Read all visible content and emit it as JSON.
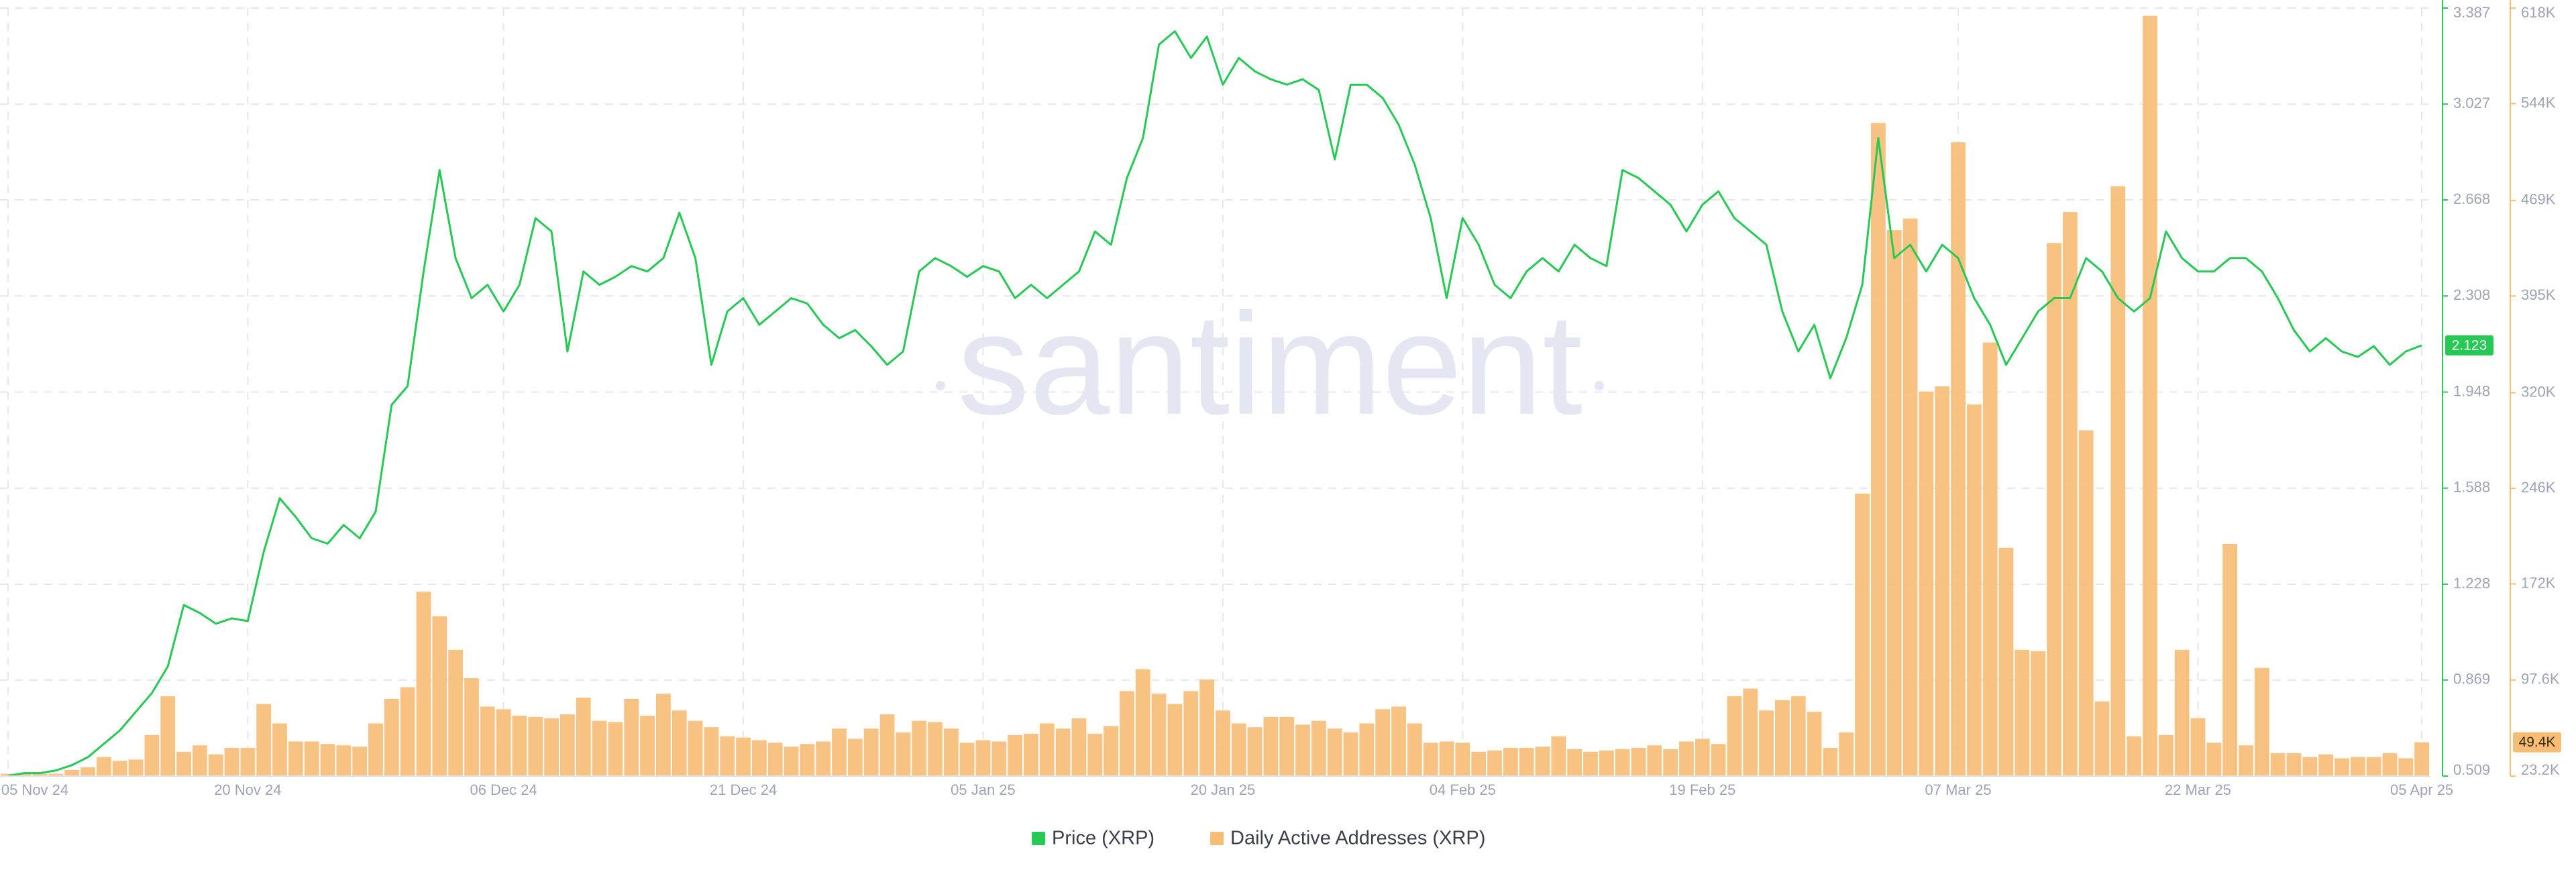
{
  "chart_data": {
    "type": "combo",
    "watermark": "santiment",
    "grid": true,
    "x": [
      "05 Nov 24",
      "06 Nov 24",
      "07 Nov 24",
      "08 Nov 24",
      "09 Nov 24",
      "10 Nov 24",
      "11 Nov 24",
      "12 Nov 24",
      "13 Nov 24",
      "14 Nov 24",
      "15 Nov 24",
      "16 Nov 24",
      "17 Nov 24",
      "18 Nov 24",
      "19 Nov 24",
      "20 Nov 24",
      "21 Nov 24",
      "22 Nov 24",
      "23 Nov 24",
      "24 Nov 24",
      "25 Nov 24",
      "26 Nov 24",
      "27 Nov 24",
      "28 Nov 24",
      "29 Nov 24",
      "30 Nov 24",
      "01 Dec 24",
      "02 Dec 24",
      "03 Dec 24",
      "04 Dec 24",
      "05 Dec 24",
      "06 Dec 24",
      "07 Dec 24",
      "08 Dec 24",
      "09 Dec 24",
      "10 Dec 24",
      "11 Dec 24",
      "12 Dec 24",
      "13 Dec 24",
      "14 Dec 24",
      "15 Dec 24",
      "16 Dec 24",
      "17 Dec 24",
      "18 Dec 24",
      "19 Dec 24",
      "20 Dec 24",
      "21 Dec 24",
      "22 Dec 24",
      "23 Dec 24",
      "24 Dec 24",
      "25 Dec 24",
      "26 Dec 24",
      "27 Dec 24",
      "28 Dec 24",
      "29 Dec 24",
      "30 Dec 24",
      "31 Dec 24",
      "01 Jan 25",
      "02 Jan 25",
      "03 Jan 25",
      "04 Jan 25",
      "05 Jan 25",
      "06 Jan 25",
      "07 Jan 25",
      "08 Jan 25",
      "09 Jan 25",
      "10 Jan 25",
      "11 Jan 25",
      "12 Jan 25",
      "13 Jan 25",
      "14 Jan 25",
      "15 Jan 25",
      "16 Jan 25",
      "17 Jan 25",
      "18 Jan 25",
      "19 Jan 25",
      "20 Jan 25",
      "21 Jan 25",
      "22 Jan 25",
      "23 Jan 25",
      "24 Jan 25",
      "25 Jan 25",
      "26 Jan 25",
      "27 Jan 25",
      "28 Jan 25",
      "29 Jan 25",
      "30 Jan 25",
      "31 Jan 25",
      "01 Feb 25",
      "02 Feb 25",
      "03 Feb 25",
      "04 Feb 25",
      "05 Feb 25",
      "06 Feb 25",
      "07 Feb 25",
      "08 Feb 25",
      "09 Feb 25",
      "10 Feb 25",
      "11 Feb 25",
      "12 Feb 25",
      "13 Feb 25",
      "14 Feb 25",
      "15 Feb 25",
      "16 Feb 25",
      "17 Feb 25",
      "18 Feb 25",
      "19 Feb 25",
      "20 Feb 25",
      "21 Feb 25",
      "22 Feb 25",
      "23 Feb 25",
      "24 Feb 25",
      "25 Feb 25",
      "26 Feb 25",
      "27 Feb 25",
      "28 Feb 25",
      "01 Mar 25",
      "02 Mar 25",
      "03 Mar 25",
      "04 Mar 25",
      "05 Mar 25",
      "06 Mar 25",
      "07 Mar 25",
      "08 Mar 25",
      "09 Mar 25",
      "10 Mar 25",
      "11 Mar 25",
      "12 Mar 25",
      "13 Mar 25",
      "14 Mar 25",
      "15 Mar 25",
      "16 Mar 25",
      "17 Mar 25",
      "18 Mar 25",
      "19 Mar 25",
      "20 Mar 25",
      "21 Mar 25",
      "22 Mar 25",
      "23 Mar 25",
      "24 Mar 25",
      "25 Mar 25",
      "26 Mar 25",
      "27 Mar 25",
      "28 Mar 25",
      "29 Mar 25",
      "30 Mar 25",
      "31 Mar 25",
      "01 Apr 25",
      "02 Apr 25",
      "03 Apr 25",
      "04 Apr 25",
      "05 Apr 25"
    ],
    "xticks": [
      "05 Nov 24",
      "20 Nov 24",
      "06 Dec 24",
      "21 Dec 24",
      "05 Jan 25",
      "20 Jan 25",
      "04 Feb 25",
      "19 Feb 25",
      "07 Mar 25",
      "22 Mar 25",
      "05 Apr 25"
    ],
    "ylim": [
      0.509,
      3.387
    ],
    "yticks": [
      0.509,
      0.869,
      1.228,
      1.588,
      1.948,
      2.308,
      2.668,
      3.027,
      3.387
    ],
    "y2lim": [
      23200,
      618000
    ],
    "y2ticks": [
      {
        "value": 23200,
        "label": "23.2K"
      },
      {
        "value": 97600,
        "label": "97.6K"
      },
      {
        "value": 172000,
        "label": "172K"
      },
      {
        "value": 246000,
        "label": "246K"
      },
      {
        "value": 320000,
        "label": "320K"
      },
      {
        "value": 395000,
        "label": "395K"
      },
      {
        "value": 469000,
        "label": "469K"
      },
      {
        "value": 544000,
        "label": "544K"
      },
      {
        "value": 618000,
        "label": "618K"
      }
    ],
    "series": [
      {
        "name": "Price (XRP)",
        "type": "line",
        "axis": "y",
        "color": "#26c953",
        "last_value": 2.123,
        "values": [
          0.51,
          0.52,
          0.52,
          0.53,
          0.55,
          0.58,
          0.63,
          0.68,
          0.75,
          0.82,
          0.92,
          1.15,
          1.12,
          1.08,
          1.1,
          1.09,
          1.35,
          1.55,
          1.48,
          1.4,
          1.38,
          1.45,
          1.4,
          1.5,
          1.9,
          1.97,
          2.4,
          2.78,
          2.45,
          2.3,
          2.35,
          2.25,
          2.35,
          2.6,
          2.55,
          2.1,
          2.4,
          2.35,
          2.38,
          2.42,
          2.4,
          2.45,
          2.62,
          2.45,
          2.05,
          2.25,
          2.3,
          2.2,
          2.25,
          2.3,
          2.28,
          2.2,
          2.15,
          2.18,
          2.12,
          2.05,
          2.1,
          2.4,
          2.45,
          2.42,
          2.38,
          2.42,
          2.4,
          2.3,
          2.35,
          2.3,
          2.35,
          2.4,
          2.55,
          2.5,
          2.75,
          2.9,
          3.25,
          3.3,
          3.2,
          3.28,
          3.1,
          3.2,
          3.15,
          3.12,
          3.1,
          3.12,
          3.08,
          2.82,
          3.1,
          3.1,
          3.05,
          2.95,
          2.8,
          2.6,
          2.3,
          2.6,
          2.5,
          2.35,
          2.3,
          2.4,
          2.45,
          2.4,
          2.5,
          2.45,
          2.42,
          2.78,
          2.75,
          2.7,
          2.65,
          2.55,
          2.65,
          2.7,
          2.6,
          2.55,
          2.5,
          2.25,
          2.1,
          2.2,
          2.0,
          2.15,
          2.35,
          2.9,
          2.45,
          2.5,
          2.4,
          2.5,
          2.45,
          2.3,
          2.2,
          2.05,
          2.15,
          2.25,
          2.3,
          2.3,
          2.45,
          2.4,
          2.3,
          2.25,
          2.3,
          2.55,
          2.45,
          2.4,
          2.4,
          2.45,
          2.45,
          2.4,
          2.3,
          2.18,
          2.1,
          2.15,
          2.1,
          2.08,
          2.12,
          2.05,
          2.1,
          2.123
        ]
      },
      {
        "name": "Daily Active Addresses (XRP)",
        "type": "bar",
        "axis": "y2",
        "color": "#f7bd74",
        "last_value": {
          "value": 49400,
          "label": "49.4K"
        },
        "values": [
          25000,
          25000,
          25000,
          25000,
          28000,
          30000,
          38000,
          35000,
          36000,
          55000,
          85000,
          42000,
          47000,
          40000,
          45000,
          45000,
          79000,
          64000,
          50000,
          50000,
          48000,
          47000,
          46000,
          64000,
          83000,
          92000,
          166000,
          147000,
          121000,
          99000,
          77000,
          75000,
          70000,
          69000,
          68000,
          71000,
          84000,
          66000,
          65000,
          83000,
          70000,
          87000,
          74000,
          66000,
          61000,
          54000,
          53000,
          51000,
          49000,
          46000,
          48000,
          50000,
          60000,
          52000,
          60000,
          71000,
          57000,
          66000,
          65000,
          60000,
          49000,
          51000,
          50000,
          55000,
          56000,
          64000,
          60000,
          68000,
          56000,
          62000,
          89000,
          106000,
          87000,
          79000,
          89000,
          98000,
          74000,
          64000,
          61000,
          69000,
          69000,
          63000,
          66000,
          60000,
          57000,
          64000,
          75000,
          77000,
          64000,
          49000,
          50000,
          49000,
          42000,
          43000,
          45000,
          45000,
          46000,
          54000,
          44000,
          42000,
          43000,
          44000,
          45000,
          47000,
          44000,
          50000,
          52000,
          48000,
          85000,
          91000,
          74000,
          82000,
          85000,
          73000,
          45000,
          57000,
          242000,
          529000,
          446000,
          455000,
          321000,
          325000,
          514000,
          311000,
          359000,
          200000,
          121000,
          120000,
          436000,
          460000,
          291000,
          81000,
          480000,
          54000,
          612000,
          55000,
          121000,
          68000,
          49000,
          203000,
          47000,
          107000,
          41000,
          41000,
          38000,
          40000,
          37000,
          38000,
          38000,
          41000,
          37000,
          49400
        ]
      }
    ]
  }
}
